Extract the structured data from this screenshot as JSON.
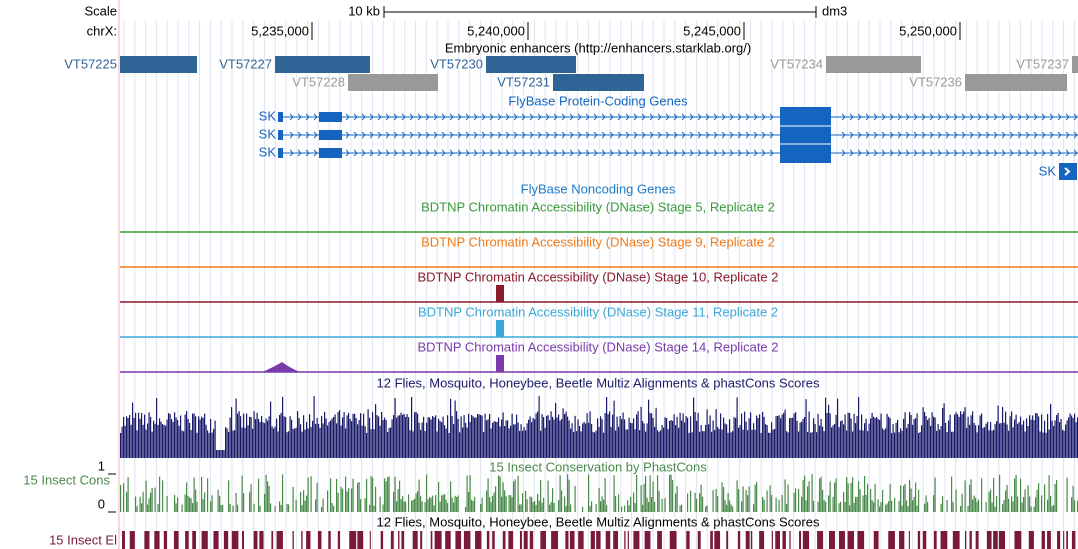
{
  "header": {
    "scale_label": "Scale",
    "scale_bar": "10 kb",
    "assembly": "dm3",
    "chrom_label": "chrX:",
    "positions": [
      "5,235,000",
      "5,240,000",
      "5,245,000",
      "5,250,000"
    ]
  },
  "enhancers": {
    "title": "Embryonic enhancers (http://enhancers.starklab.org/)",
    "items": [
      {
        "name": "VT57225",
        "color": "#2f6596"
      },
      {
        "name": "VT57227",
        "color": "#2f6596"
      },
      {
        "name": "VT57228",
        "color": "#999999"
      },
      {
        "name": "VT57230",
        "color": "#2f6596"
      },
      {
        "name": "VT57231",
        "color": "#2f6596"
      },
      {
        "name": "VT57234",
        "color": "#999999"
      },
      {
        "name": "VT57236",
        "color": "#999999"
      },
      {
        "name": "VT57237",
        "color": "#999999"
      }
    ]
  },
  "genes": {
    "title": "FlyBase Protein-Coding Genes",
    "items": [
      "SK",
      "SK",
      "SK"
    ],
    "next": "SK",
    "color": "#1565c0"
  },
  "noncoding": {
    "title": "FlyBase Noncoding Genes",
    "color": "#1a7ac8"
  },
  "dnase": [
    {
      "title": "BDTNP Chromatin Accessibility (DNase) Stage 5, Replicate 2",
      "color": "#3a9a3a"
    },
    {
      "title": "BDTNP Chromatin Accessibility (DNase) Stage 9, Replicate 2",
      "color": "#f07a1a"
    },
    {
      "title": "BDTNP Chromatin Accessibility (DNase) Stage 10, Replicate 2",
      "color": "#8b1a2a"
    },
    {
      "title": "BDTNP Chromatin Accessibility (DNase) Stage 11, Replicate 2",
      "color": "#3aa8d8"
    },
    {
      "title": "BDTNP Chromatin Accessibility (DNase) Stage 14, Replicate 2",
      "color": "#7a3aaa"
    }
  ],
  "multiz": {
    "title": "12 Flies, Mosquito, Honeybee, Beetle Multiz Alignments & phastCons Scores",
    "color": "#1a1a6a"
  },
  "phastcons": {
    "title": "15 Insect Conservation by PhastCons",
    "side_label": "15 Insect Cons",
    "scale_max": "1",
    "scale_min": "0",
    "color": "#4a8a4a"
  },
  "elements": {
    "title": "12 Flies, Mosquito, Honeybee, Beetle Multiz Alignments & phastCons Scores",
    "side_label": "15 Insect El",
    "color": "#7a1a3a"
  }
}
